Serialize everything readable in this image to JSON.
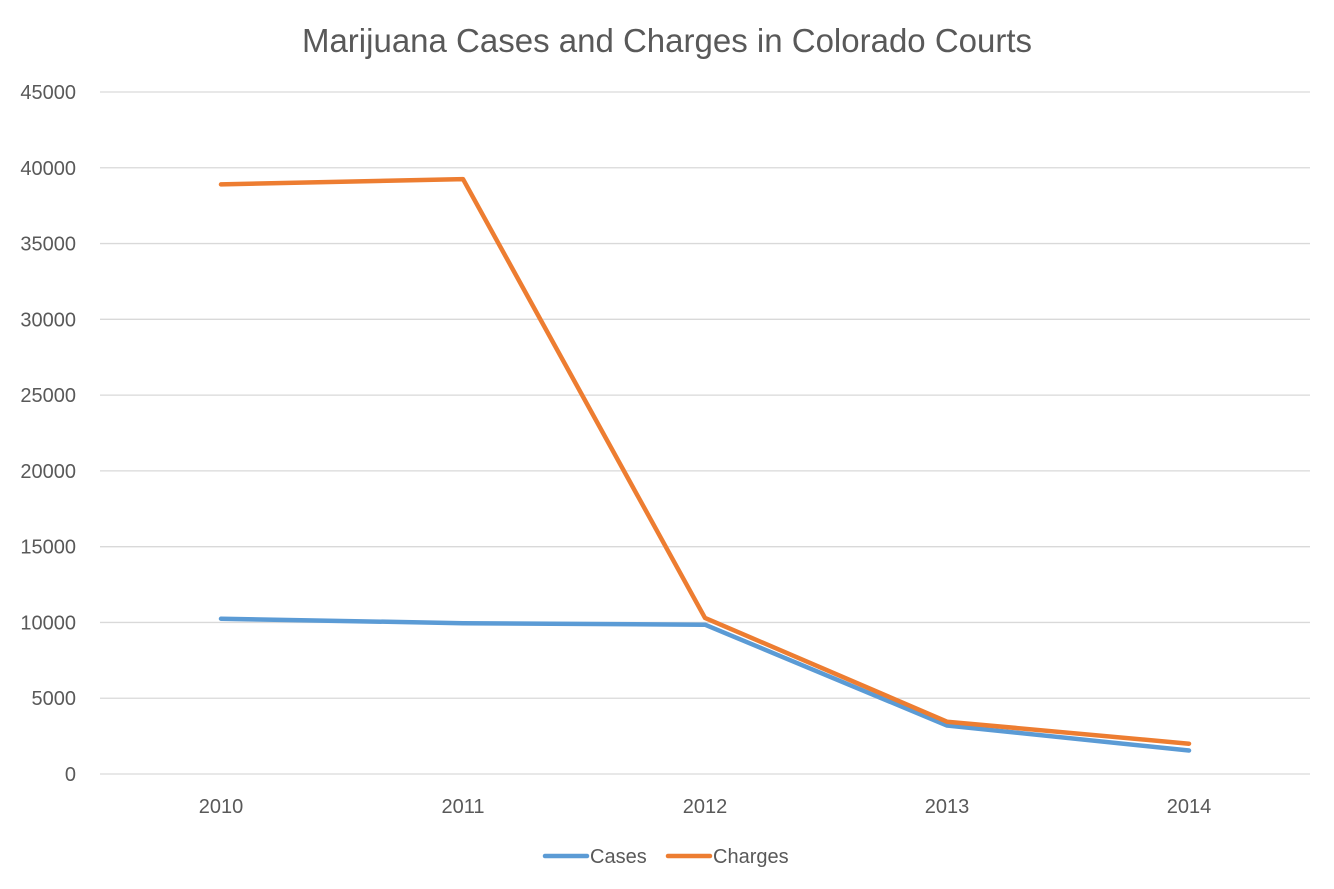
{
  "chart_data": {
    "type": "line",
    "title": "Marijuana Cases and Charges in Colorado Courts",
    "xlabel": "",
    "ylabel": "",
    "categories": [
      "2010",
      "2011",
      "2012",
      "2013",
      "2014"
    ],
    "ylim": [
      0,
      45000
    ],
    "yticks": [
      0,
      5000,
      10000,
      15000,
      20000,
      25000,
      30000,
      35000,
      40000,
      45000
    ],
    "grid": true,
    "legend_position": "bottom",
    "series": [
      {
        "name": "Cases",
        "color": "#5b9bd5",
        "values": [
          10250,
          9950,
          9850,
          3200,
          1550
        ]
      },
      {
        "name": "Charges",
        "color": "#ed7d31",
        "values": [
          38900,
          39250,
          10300,
          3450,
          2000
        ]
      }
    ]
  }
}
